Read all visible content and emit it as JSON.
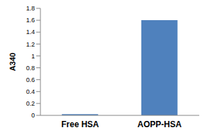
{
  "chart_data": {
    "type": "bar",
    "y_label": "A340",
    "categories": [
      "Free HSA",
      "AOPP-HSA"
    ],
    "values": [
      0.02,
      1.6
    ],
    "color": "#4f81bd",
    "ylim": [
      0,
      1.8
    ],
    "yticks": [
      0,
      0.2,
      0.4,
      0.6,
      0.8,
      1,
      1.2,
      1.4,
      1.6,
      1.8
    ],
    "grid": false
  }
}
